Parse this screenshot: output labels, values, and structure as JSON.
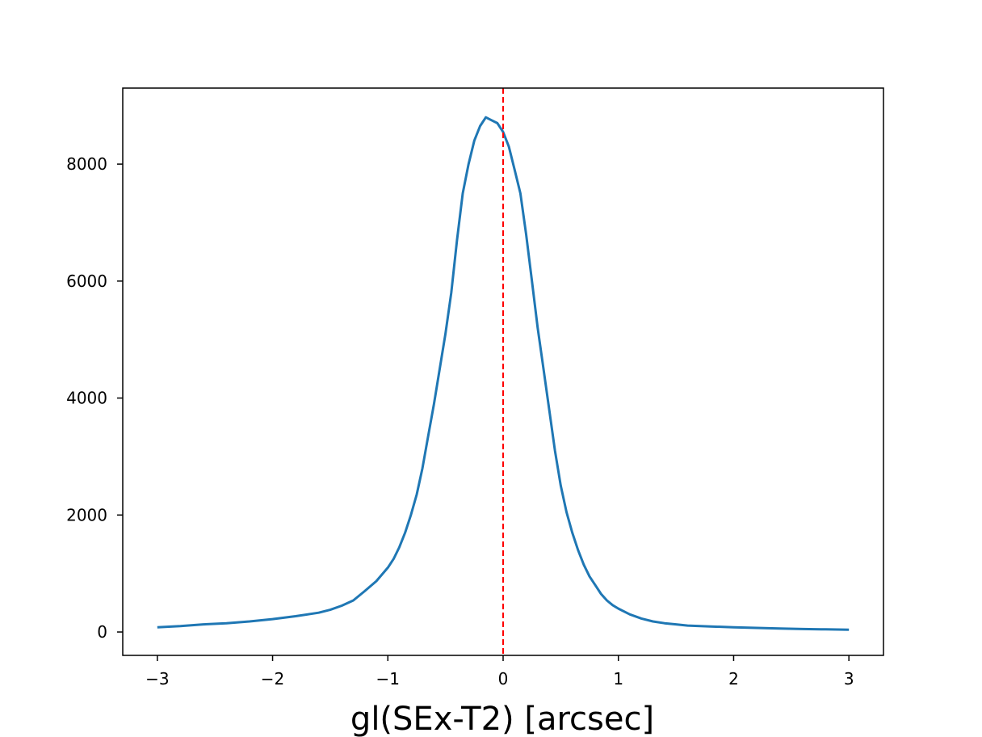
{
  "chart_data": {
    "type": "line",
    "title": "",
    "xlabel": "gl(SEx-T2) [arcsec]",
    "ylabel": "",
    "xlim": [
      -3.3,
      3.3
    ],
    "ylim": [
      -400,
      9300
    ],
    "xticks": [
      -3,
      -2,
      -1,
      0,
      1,
      2,
      3
    ],
    "xtick_labels": [
      "−3",
      "−2",
      "−1",
      "0",
      "1",
      "2",
      "3"
    ],
    "yticks": [
      0,
      2000,
      4000,
      6000,
      8000
    ],
    "ytick_labels": [
      "0",
      "2000",
      "4000",
      "6000",
      "8000"
    ],
    "grid": false,
    "legend": "none",
    "series": [
      {
        "color": "#1f77b4",
        "x": [
          -3.0,
          -2.8,
          -2.6,
          -2.4,
          -2.2,
          -2.0,
          -1.8,
          -1.6,
          -1.5,
          -1.4,
          -1.3,
          -1.2,
          -1.1,
          -1.0,
          -0.95,
          -0.9,
          -0.85,
          -0.8,
          -0.75,
          -0.7,
          -0.65,
          -0.6,
          -0.55,
          -0.5,
          -0.45,
          -0.4,
          -0.35,
          -0.3,
          -0.25,
          -0.2,
          -0.15,
          -0.1,
          -0.05,
          0.0,
          0.05,
          0.1,
          0.15,
          0.2,
          0.25,
          0.3,
          0.35,
          0.4,
          0.45,
          0.5,
          0.55,
          0.6,
          0.65,
          0.7,
          0.75,
          0.8,
          0.85,
          0.9,
          0.95,
          1.0,
          1.1,
          1.2,
          1.3,
          1.4,
          1.5,
          1.6,
          1.8,
          2.0,
          2.2,
          2.4,
          2.6,
          2.8,
          3.0
        ],
        "y": [
          80,
          100,
          130,
          150,
          180,
          220,
          270,
          330,
          380,
          450,
          540,
          700,
          870,
          1100,
          1250,
          1450,
          1700,
          2000,
          2350,
          2800,
          3350,
          3900,
          4500,
          5100,
          5800,
          6700,
          7500,
          8000,
          8400,
          8650,
          8800,
          8750,
          8700,
          8550,
          8300,
          7900,
          7500,
          6800,
          6000,
          5200,
          4500,
          3800,
          3100,
          2500,
          2050,
          1700,
          1400,
          1150,
          950,
          800,
          650,
          540,
          460,
          400,
          300,
          230,
          180,
          150,
          130,
          110,
          95,
          80,
          70,
          60,
          50,
          45,
          40
        ]
      }
    ],
    "reference_line": {
      "x": 0,
      "color": "#ff0000",
      "style": "dashed"
    }
  }
}
